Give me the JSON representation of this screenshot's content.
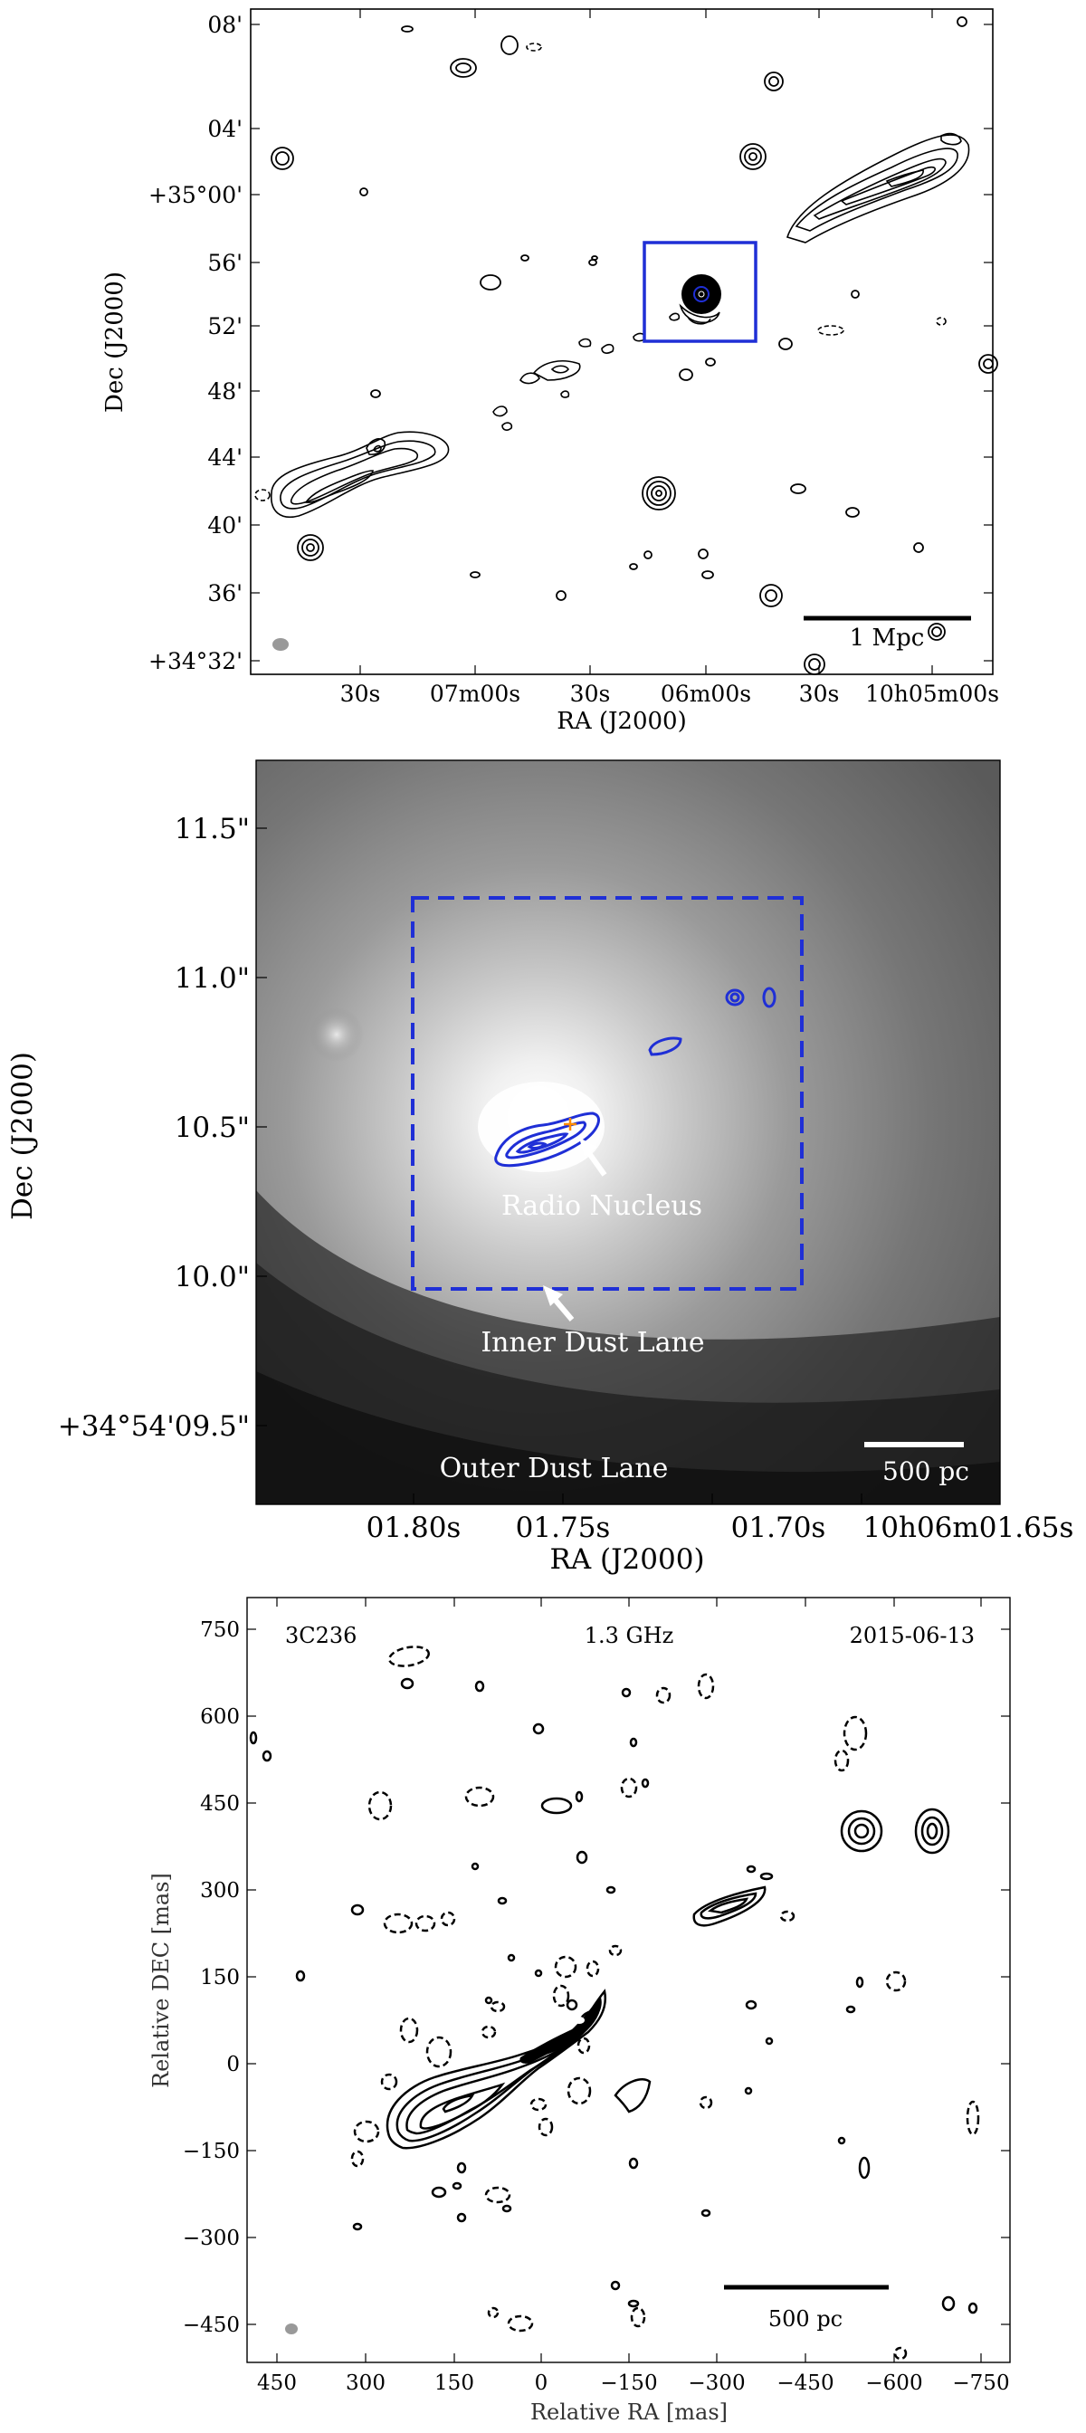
{
  "panel1": {
    "xlabel": "RA (J2000)",
    "ylabel": "Dec (J2000)",
    "xticks": [
      "30s",
      "07m00s",
      "30s",
      "06m00s",
      "30s",
      "10h05m00s"
    ],
    "yticks": [
      "08'",
      "04'",
      "+35°00'",
      "56'",
      "52'",
      "48'",
      "44'",
      "40'",
      "36'",
      "+34°32'"
    ],
    "scalebar_label": "1 Mpc",
    "box_color": "#1f2fd6"
  },
  "panel2": {
    "xlabel": "RA (J2000)",
    "ylabel": "Dec (J2000)",
    "xticks": [
      "01.80s",
      "01.75s",
      "01.70s",
      "10h06m01.65s"
    ],
    "yticks": [
      "11.5\"",
      "11.0\"",
      "10.5\"",
      "10.0\"",
      "+34°54'09.5\""
    ],
    "annotations": {
      "radio_nucleus": "Radio Nucleus",
      "inner_dust_lane": "Inner Dust Lane",
      "outer_dust_lane": "Outer Dust Lane"
    },
    "scalebar_label": "500 pc",
    "contour_color": "#1f2fd6",
    "marker_color": "#ff8c00"
  },
  "panel3": {
    "xlabel": "Relative RA [mas]",
    "ylabel": "Relative DEC [mas]",
    "source": "3C236",
    "frequency": "1.3 GHz",
    "date": "2015-06-13",
    "xticks": [
      "450",
      "300",
      "150",
      "0",
      "−150",
      "−300",
      "−450",
      "−600",
      "−750"
    ],
    "yticks": [
      "750",
      "600",
      "450",
      "300",
      "150",
      "0",
      "−150",
      "−300",
      "−450"
    ],
    "scalebar_label": "500 pc"
  }
}
